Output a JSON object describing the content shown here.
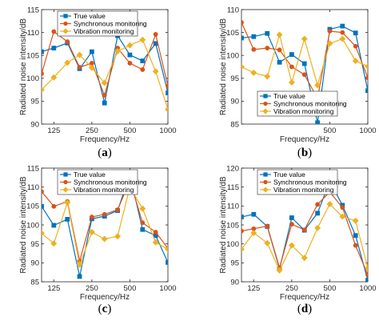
{
  "colors": {
    "true_value": "#0072BD",
    "synchronous": "#D95319",
    "vibration": "#EDB120",
    "axis": "#262626"
  },
  "chart_data": [
    {
      "type": "line",
      "panel_label": "(a)",
      "xlabel": "Frequency/Hz",
      "ylabel": "Radiated noise intensity/dB",
      "x_scale": "log",
      "xlim": [
        100,
        1000
      ],
      "ylim": [
        90,
        115
      ],
      "x_ticks": [
        "125",
        "250",
        "500",
        "1000"
      ],
      "y_ticks": [
        "90",
        "95",
        "100",
        "105",
        "110",
        "115"
      ],
      "legend": "top-left",
      "x": [
        100,
        125,
        160,
        200,
        250,
        315,
        400,
        500,
        630,
        800,
        1000
      ],
      "series": [
        {
          "name": "True value",
          "values": [
            105.8,
            106.6,
            107.7,
            102.1,
            105.8,
            94.6,
            109.3,
            105.1,
            103.8,
            107.6,
            96.8
          ]
        },
        {
          "name": "Synchronous monitoring",
          "values": [
            101.0,
            110.2,
            108.0,
            102.4,
            103.3,
            96.3,
            106.6,
            103.3,
            101.9,
            109.6,
            98.3
          ]
        },
        {
          "name": "Vibration monitoring",
          "values": [
            97.5,
            100.2,
            103.4,
            105.1,
            102.3,
            99.0,
            105.9,
            107.2,
            108.4,
            101.5,
            93.2
          ]
        }
      ]
    },
    {
      "type": "line",
      "panel_label": "(b)",
      "xlabel": "Frequency/Hz",
      "ylabel": "Radiated noise intensity/dB",
      "x_scale": "log",
      "xlim": [
        100,
        1000
      ],
      "ylim": [
        85,
        110
      ],
      "x_ticks": [
        "500",
        "1000"
      ],
      "y_ticks": [
        "85",
        "90",
        "95",
        "100",
        "105",
        "110"
      ],
      "legend": "bottom-left",
      "x": [
        100,
        125,
        160,
        200,
        250,
        315,
        400,
        500,
        630,
        800,
        1000
      ],
      "series": [
        {
          "name": "True value",
          "values": [
            103.8,
            104.1,
            104.8,
            98.5,
            100.2,
            98.2,
            85.3,
            105.7,
            106.4,
            104.9,
            92.3
          ]
        },
        {
          "name": "Synchronous monitoring",
          "values": [
            107.2,
            101.3,
            101.6,
            101.2,
            97.5,
            95.8,
            90.6,
            105.3,
            105.0,
            102.0,
            95.1
          ]
        },
        {
          "name": "Vibration monitoring",
          "values": [
            97.5,
            96.2,
            95.4,
            104.5,
            94.1,
            103.6,
            93.5,
            102.6,
            103.6,
            98.8,
            97.6
          ]
        }
      ]
    },
    {
      "type": "line",
      "panel_label": "(c)",
      "xlabel": "Frequency/Hz",
      "ylabel": "Radiated noise intensity/dB",
      "x_scale": "log",
      "xlim": [
        100,
        1000
      ],
      "ylim": [
        85,
        115
      ],
      "x_ticks": [
        "125",
        "250",
        "500",
        "1000"
      ],
      "y_ticks": [
        "85",
        "90",
        "95",
        "100",
        "105",
        "110",
        "115"
      ],
      "legend": "top-left",
      "x": [
        100,
        125,
        160,
        200,
        250,
        315,
        400,
        500,
        630,
        800,
        1000
      ],
      "series": [
        {
          "name": "True value",
          "values": [
            104.9,
            99.9,
            101.5,
            86.4,
            101.6,
            102.3,
            103.8,
            113.3,
            98.8,
            97.2,
            90.1
          ]
        },
        {
          "name": "Synchronous monitoring",
          "values": [
            108.8,
            104.9,
            106.2,
            90.5,
            102.1,
            102.8,
            104.0,
            111.7,
            100.6,
            98.1,
            93.8
          ]
        },
        {
          "name": "Vibration monitoring",
          "values": [
            97.8,
            95.1,
            105.9,
            89.5,
            98.1,
            96.3,
            97.0,
            110.0,
            104.3,
            95.4,
            93.6
          ]
        }
      ]
    },
    {
      "type": "line",
      "panel_label": "(d)",
      "xlabel": "Frequency/Hz",
      "ylabel": "Radiated noise intensity/dB",
      "x_scale": "log",
      "xlim": [
        100,
        1000
      ],
      "ylim": [
        90,
        120
      ],
      "x_ticks": [
        "125",
        "250",
        "500",
        "1000"
      ],
      "y_ticks": [
        "90",
        "95",
        "100",
        "105",
        "110",
        "115",
        "120"
      ],
      "legend": "top-left",
      "x": [
        100,
        125,
        160,
        200,
        250,
        315,
        400,
        500,
        630,
        800,
        1000
      ],
      "series": [
        {
          "name": "True value",
          "values": [
            107.1,
            107.8,
            104.6,
            93.4,
            106.9,
            103.6,
            108.1,
            116.5,
            110.2,
            102.2,
            90.4
          ]
        },
        {
          "name": "Synchronous monitoring",
          "values": [
            103.4,
            104.0,
            104.7,
            93.7,
            105.2,
            103.7,
            110.4,
            113.7,
            109.6,
            99.6,
            91.8
          ]
        },
        {
          "name": "Vibration monitoring",
          "values": [
            98.6,
            102.9,
            100.2,
            93.0,
            99.6,
            96.3,
            104.2,
            110.5,
            107.2,
            106.1,
            93.6
          ]
        }
      ]
    }
  ]
}
